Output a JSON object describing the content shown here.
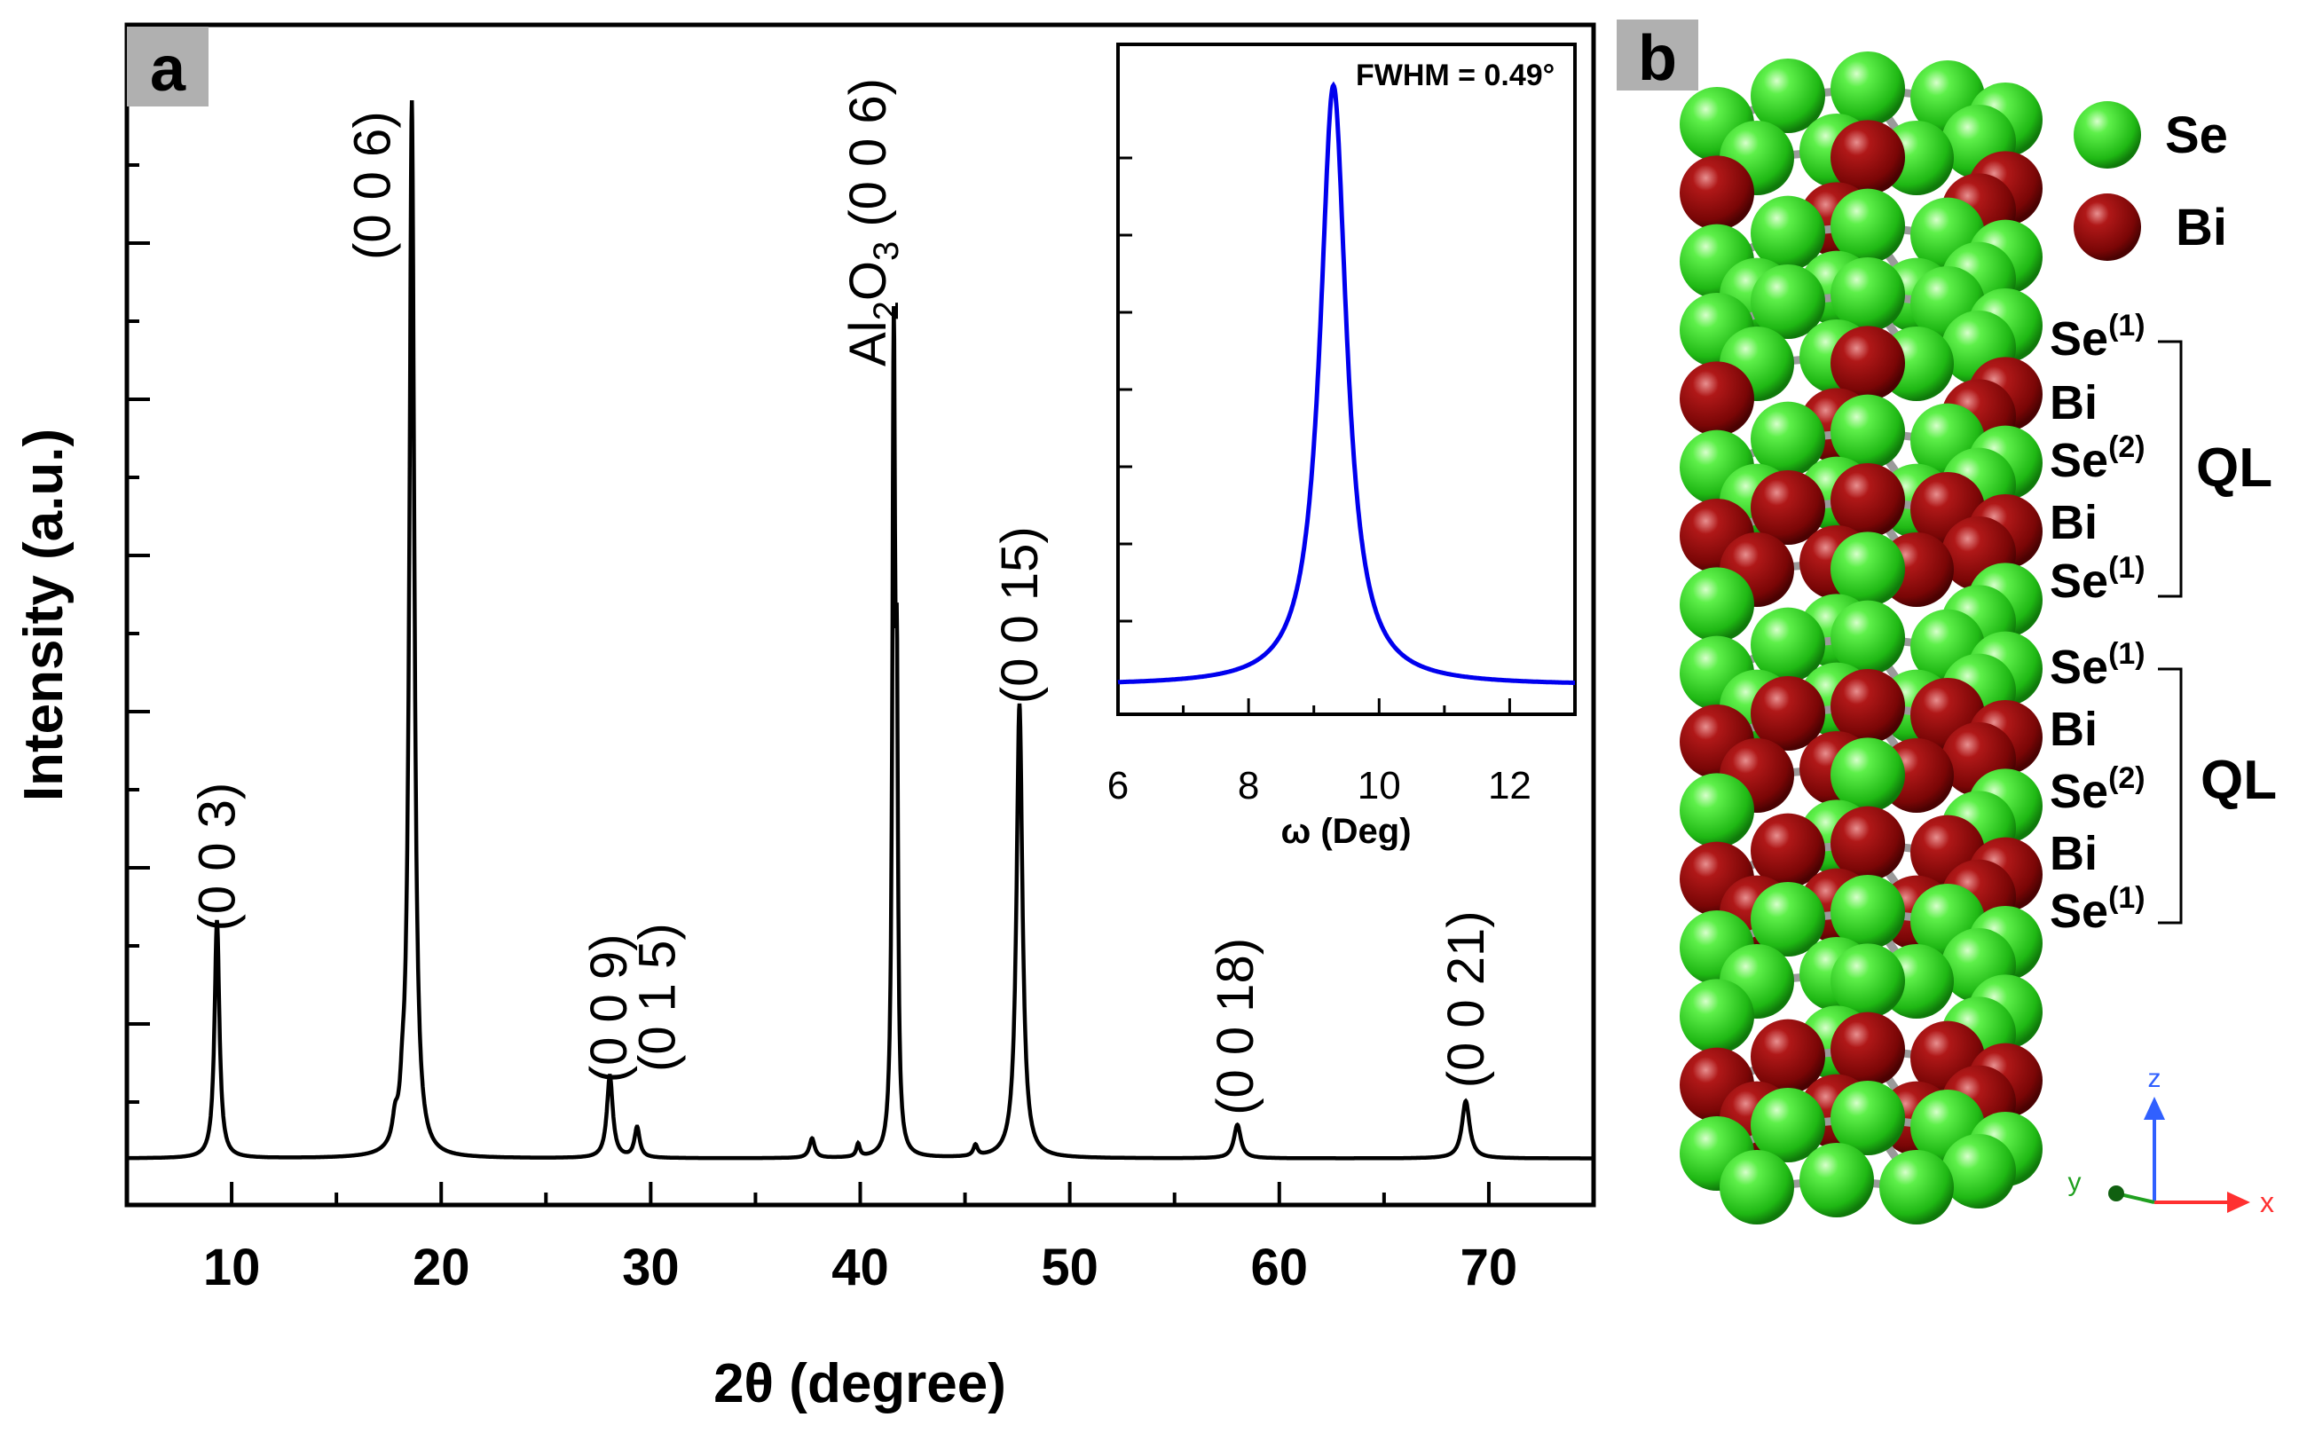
{
  "chart_data": [
    {
      "panel": "a",
      "type": "line",
      "title": "",
      "xlabel": "2θ (degree)",
      "ylabel": "Intensity (a.u.)",
      "xlim": [
        5,
        75
      ],
      "ylim": [
        0,
        1.0
      ],
      "xticks": [
        10,
        20,
        30,
        40,
        50,
        60,
        70
      ],
      "yticks_labeled": false,
      "baseline": 0.02,
      "series": [
        {
          "name": "XRD pattern",
          "color": "#000000",
          "peaks": [
            {
              "x": 9.3,
              "y": 0.22,
              "w": 0.14
            },
            {
              "x": 17.8,
              "y": 0.02,
              "w": 0.15
            },
            {
              "x": 18.15,
              "y": 0.026,
              "w": 0.12
            },
            {
              "x": 18.6,
              "y": 0.975,
              "w": 0.14
            },
            {
              "x": 28.05,
              "y": 0.076,
              "w": 0.17
            },
            {
              "x": 29.35,
              "y": 0.028,
              "w": 0.15
            },
            {
              "x": 37.7,
              "y": 0.018,
              "w": 0.15
            },
            {
              "x": 39.9,
              "y": 0.012,
              "w": 0.1
            },
            {
              "x": 41.6,
              "y": 0.74,
              "w": 0.08
            },
            {
              "x": 41.75,
              "y": 0.34,
              "w": 0.06
            },
            {
              "x": 45.5,
              "y": 0.01,
              "w": 0.12
            },
            {
              "x": 47.6,
              "y": 0.42,
              "w": 0.17
            },
            {
              "x": 58.0,
              "y": 0.031,
              "w": 0.2
            },
            {
              "x": 68.9,
              "y": 0.053,
              "w": 0.22
            }
          ]
        }
      ],
      "annotations": [
        {
          "label": "(0 0 3)",
          "x": 9.3,
          "y": 0.23
        },
        {
          "label": "(0 0 6)",
          "x": 16.7,
          "y": 0.85
        },
        {
          "label": "(0 0 9)",
          "x": 28.0,
          "y": 0.09
        },
        {
          "label": "(0 1 5)",
          "x": 30.3,
          "y": 0.1
        },
        {
          "label": "(0 0 15)",
          "x": 47.6,
          "y": 0.44
        },
        {
          "label": "(0 0 18)",
          "x": 57.9,
          "y": 0.06
        },
        {
          "label": "(0 0 21)",
          "x": 68.9,
          "y": 0.085
        }
      ],
      "substrate_annotation": {
        "prefix": "Al",
        "sub1": "2",
        "mid": "O",
        "sub2": "3",
        "suffix": " (0 0 6)",
        "x": 41.3,
        "y": 0.75
      },
      "panel_label": "a"
    },
    {
      "panel": "a-inset",
      "type": "line",
      "title": "",
      "xlabel": "ω (Deg)",
      "ylabel": "",
      "xlim": [
        6,
        13
      ],
      "ylim": [
        0,
        1.0
      ],
      "xticks": [
        6,
        8,
        10,
        12
      ],
      "annotation": "FWHM = 0.49°",
      "series": [
        {
          "name": "Rocking curve",
          "color": "#0000ee",
          "peak_center": 9.3,
          "peak_height": 0.93,
          "peak_halfwidth": 0.245,
          "baseline": 0.02
        }
      ]
    }
  ],
  "panel_b": {
    "panel_label": "b",
    "legend": [
      {
        "label": "Se",
        "color": "#2fdc1f"
      },
      {
        "label": "Bi",
        "color": "#8b0a0a"
      }
    ],
    "layers_group1": [
      {
        "label": "Se",
        "sup": "(1)"
      },
      {
        "label": "Bi",
        "sup": ""
      },
      {
        "label": "Se",
        "sup": "(2)"
      },
      {
        "label": "Bi",
        "sup": ""
      },
      {
        "label": "Se",
        "sup": "(1)"
      }
    ],
    "layers_group2": [
      {
        "label": "Se",
        "sup": "(1)"
      },
      {
        "label": "Bi",
        "sup": ""
      },
      {
        "label": "Se",
        "sup": "(2)"
      },
      {
        "label": "Bi",
        "sup": ""
      },
      {
        "label": "Se",
        "sup": "(1)"
      }
    ],
    "ql_label_1": "QL",
    "ql_label_2": "QL",
    "axes": {
      "z": "z",
      "y": "y",
      "x": "x"
    },
    "atom_layers": [
      "Se",
      "Bi",
      "Se",
      "Se",
      "Bi",
      "Se",
      "Bi",
      "Se",
      "Se",
      "Bi",
      "Se",
      "Bi",
      "Se",
      "Se",
      "Bi",
      "Se"
    ]
  }
}
